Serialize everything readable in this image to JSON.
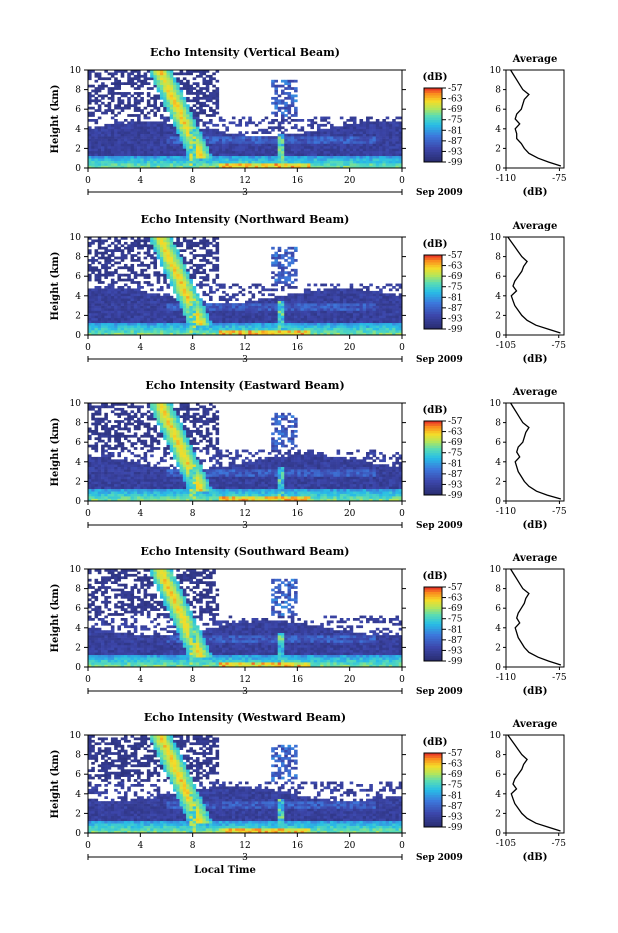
{
  "chart_data": [
    {
      "type": "heatmap",
      "title": "Echo Intensity (Vertical Beam)",
      "ylabel": "Height (km)",
      "ylim": [
        0,
        10
      ],
      "yticks": [
        "0",
        "2",
        "4",
        "6",
        "8",
        "10"
      ],
      "xlim": [
        0,
        24
      ],
      "xticks": [
        "0",
        "4",
        "8",
        "12",
        "16",
        "20",
        "0"
      ],
      "date_marker": "3",
      "date_label": "Sep 2009",
      "colorbar": {
        "label": "(dB)",
        "ticks": [
          "-57",
          "-63",
          "-69",
          "-75",
          "-81",
          "-87",
          "-93",
          "-99"
        ],
        "range": [
          -99,
          -57
        ]
      },
      "profile": {
        "title": "Average",
        "xlabel": "(dB)",
        "xticks": [
          "-110",
          "-75"
        ],
        "xlim": [
          -110,
          -72
        ],
        "heights": [
          0.2,
          0.6,
          1,
          1.5,
          2,
          2.5,
          3,
          3.5,
          4,
          4.5,
          5,
          5.5,
          6,
          6.5,
          7,
          7.5,
          8,
          8.5,
          9,
          9.5,
          10
        ],
        "values": [
          -74,
          -82,
          -89,
          -95,
          -98,
          -100,
          -103,
          -103,
          -104,
          -101,
          -104,
          -103,
          -100,
          -99,
          -98,
          -95,
          -99,
          -101,
          -103,
          -105,
          -107
        ]
      }
    },
    {
      "type": "heatmap",
      "title": "Echo Intensity (Northward Beam)",
      "ylabel": "Height (km)",
      "ylim": [
        0,
        10
      ],
      "yticks": [
        "0",
        "2",
        "4",
        "6",
        "8",
        "10"
      ],
      "xlim": [
        0,
        24
      ],
      "xticks": [
        "0",
        "4",
        "8",
        "12",
        "16",
        "20",
        "0"
      ],
      "date_marker": "3",
      "date_label": "Sep 2009",
      "colorbar": {
        "label": "(dB)",
        "ticks": [
          "-57",
          "-63",
          "-69",
          "-75",
          "-81",
          "-87",
          "-93",
          "-99"
        ],
        "range": [
          -99,
          -57
        ]
      },
      "profile": {
        "title": "Average",
        "xlabel": "(dB)",
        "xticks": [
          "-105",
          "-75"
        ],
        "xlim": [
          -105,
          -72
        ],
        "heights": [
          0.2,
          0.6,
          1,
          1.5,
          2,
          2.5,
          3,
          3.5,
          4,
          4.5,
          5,
          5.5,
          6,
          6.5,
          7,
          7.5,
          8,
          8.5,
          9,
          9.5,
          10
        ],
        "values": [
          -74,
          -81,
          -88,
          -93,
          -96,
          -98,
          -100,
          -101,
          -102,
          -99,
          -101,
          -100,
          -98,
          -96,
          -95,
          -93,
          -96,
          -98,
          -100,
          -102,
          -104
        ]
      }
    },
    {
      "type": "heatmap",
      "title": "Echo Intensity (Eastward Beam)",
      "ylabel": "Height (km)",
      "ylim": [
        0,
        10
      ],
      "yticks": [
        "0",
        "2",
        "4",
        "6",
        "8",
        "10"
      ],
      "xlim": [
        0,
        24
      ],
      "xticks": [
        "0",
        "4",
        "8",
        "12",
        "16",
        "20",
        "0"
      ],
      "date_marker": "3",
      "date_label": "Sep 2009",
      "colorbar": {
        "label": "(dB)",
        "ticks": [
          "-57",
          "-63",
          "-69",
          "-75",
          "-81",
          "-87",
          "-93",
          "-99"
        ],
        "range": [
          -99,
          -57
        ]
      },
      "profile": {
        "title": "Average",
        "xlabel": "(dB)",
        "xticks": [
          "-110",
          "-75"
        ],
        "xlim": [
          -110,
          -72
        ],
        "heights": [
          0.2,
          0.6,
          1,
          1.5,
          2,
          2.5,
          3,
          3.5,
          4,
          4.5,
          5,
          5.5,
          6,
          6.5,
          7,
          7.5,
          8,
          8.5,
          9,
          9.5,
          10
        ],
        "values": [
          -74,
          -83,
          -90,
          -95,
          -98,
          -100,
          -102,
          -103,
          -104,
          -101,
          -103,
          -102,
          -99,
          -98,
          -97,
          -95,
          -99,
          -101,
          -103,
          -105,
          -107
        ]
      }
    },
    {
      "type": "heatmap",
      "title": "Echo Intensity (Southward Beam)",
      "ylabel": "Height (km)",
      "ylim": [
        0,
        10
      ],
      "yticks": [
        "0",
        "2",
        "4",
        "6",
        "8",
        "10"
      ],
      "xlim": [
        0,
        24
      ],
      "xticks": [
        "0",
        "4",
        "8",
        "12",
        "16",
        "20",
        "0"
      ],
      "date_marker": "3",
      "date_label": "Sep 2009",
      "colorbar": {
        "label": "(dB)",
        "ticks": [
          "-57",
          "-63",
          "-69",
          "-75",
          "-81",
          "-87",
          "-93",
          "-99"
        ],
        "range": [
          -99,
          -57
        ]
      },
      "profile": {
        "title": "Average",
        "xlabel": "(dB)",
        "xticks": [
          "-110",
          "-75"
        ],
        "xlim": [
          -110,
          -72
        ],
        "heights": [
          0.2,
          0.6,
          1,
          1.5,
          2,
          2.5,
          3,
          3.5,
          4,
          4.5,
          5,
          5.5,
          6,
          6.5,
          7,
          7.5,
          8,
          8.5,
          9,
          9.5,
          10
        ],
        "values": [
          -74,
          -82,
          -89,
          -95,
          -98,
          -100,
          -102,
          -103,
          -104,
          -101,
          -103,
          -102,
          -100,
          -98,
          -97,
          -95,
          -99,
          -101,
          -103,
          -105,
          -107
        ]
      }
    },
    {
      "type": "heatmap",
      "title": "Echo Intensity (Westward Beam)",
      "ylabel": "Height (km)",
      "ylim": [
        0,
        10
      ],
      "yticks": [
        "0",
        "2",
        "4",
        "6",
        "8",
        "10"
      ],
      "xlim": [
        0,
        24
      ],
      "xticks": [
        "0",
        "4",
        "8",
        "12",
        "16",
        "20",
        "0"
      ],
      "date_marker": "3",
      "date_label": "Sep 2009",
      "xlabel": "Local Time",
      "colorbar": {
        "label": "(dB)",
        "ticks": [
          "-57",
          "-63",
          "-69",
          "-75",
          "-81",
          "-87",
          "-93",
          "-99"
        ],
        "range": [
          -99,
          -57
        ]
      },
      "profile": {
        "title": "Average",
        "xlabel": "(dB)",
        "xticks": [
          "-105",
          "-75"
        ],
        "xlim": [
          -105,
          -72
        ],
        "heights": [
          0.2,
          0.6,
          1,
          1.5,
          2,
          2.5,
          3,
          3.5,
          4,
          4.5,
          5,
          5.5,
          6,
          6.5,
          7,
          7.5,
          8,
          8.5,
          9,
          9.5,
          10
        ],
        "values": [
          -74,
          -81,
          -88,
          -93,
          -96,
          -98,
          -100,
          -101,
          -102,
          -99,
          -101,
          -100,
          -98,
          -96,
          -95,
          -93,
          -96,
          -98,
          -100,
          -102,
          -104
        ]
      }
    }
  ]
}
